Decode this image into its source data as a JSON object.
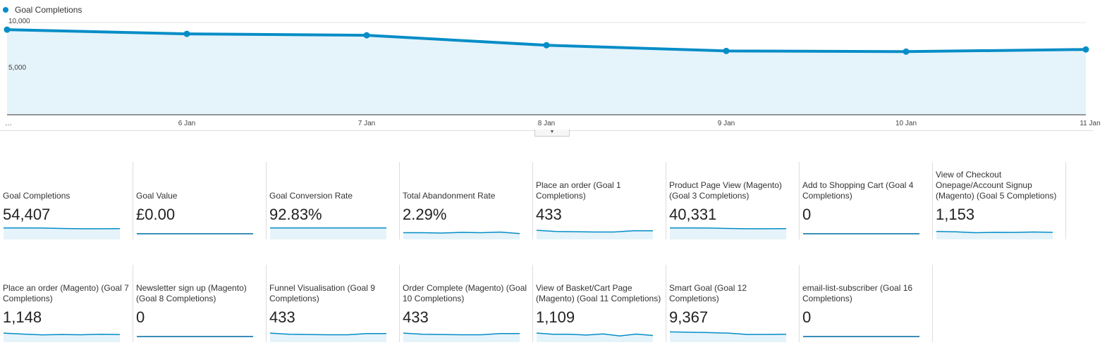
{
  "legend": {
    "label": "Goal Completions",
    "color": "#058dc7"
  },
  "chart_data": {
    "type": "area",
    "title": "Goal Completions",
    "x": [
      "…",
      "6 Jan",
      "7 Jan",
      "8 Jan",
      "9 Jan",
      "10 Jan",
      "11 Jan"
    ],
    "series": [
      {
        "name": "Goal Completions",
        "values": [
          9230,
          8770,
          8620,
          7540,
          6920,
          6850,
          7080
        ]
      }
    ],
    "yticks": [
      "10,000",
      "5,000"
    ],
    "ylim": [
      0,
      10000
    ],
    "grid": true
  },
  "toggle_icon": "chevron-down-icon",
  "cards": [
    {
      "title": "Goal Completions",
      "value": "54,407",
      "trend": [
        9,
        9,
        8.9,
        8.5,
        8.3,
        8.3,
        8.4
      ]
    },
    {
      "title": "Goal Value",
      "value": "£0.00",
      "trend": [
        0,
        0,
        0,
        0,
        0,
        0,
        0
      ],
      "line_only": true
    },
    {
      "title": "Goal Conversion Rate",
      "value": "92.83%",
      "trend": [
        9,
        9,
        9,
        9,
        9,
        9,
        9
      ]
    },
    {
      "title": "Total Abandonment Rate",
      "value": "2.29%",
      "trend": [
        5,
        5,
        4.7,
        5.3,
        5,
        5.5,
        4.3
      ]
    },
    {
      "title": "Place an order (Goal 1 Completions)",
      "value": "433",
      "trend": [
        7,
        6,
        5.8,
        5.6,
        5.6,
        6.6,
        6.6
      ]
    },
    {
      "title": "Product Page View (Magento) (Goal 3 Completions)",
      "value": "40,331",
      "trend": [
        9,
        9,
        8.9,
        8.5,
        8.3,
        8.3,
        8.4
      ]
    },
    {
      "title": "Add to Shopping Cart (Goal 4 Completions)",
      "value": "0",
      "trend": [
        0,
        0,
        0,
        0,
        0,
        0,
        0
      ],
      "line_only": true
    },
    {
      "title": "View of Checkout Onepage/Account Signup (Magento) (Goal 5 Completions)",
      "value": "1,153",
      "trend": [
        6,
        5.7,
        5,
        5.3,
        5.2,
        5.6,
        5.3
      ]
    },
    {
      "title": "Place an order (Magento) (Goal 7 Completions)",
      "value": "1,148",
      "trend": [
        7,
        6.2,
        5.5,
        5.8,
        5.6,
        6,
        5.8
      ]
    },
    {
      "title": "Newsletter sign up (Magento) (Goal 8 Completions)",
      "value": "0",
      "trend": [
        0,
        0,
        0,
        0,
        0,
        0,
        0
      ],
      "line_only": true
    },
    {
      "title": "Funnel Visualisation (Goal 9 Completions)",
      "value": "433",
      "trend": [
        7,
        6,
        5.8,
        5.6,
        5.6,
        6.6,
        6.6
      ]
    },
    {
      "title": "Order Complete (Magento) (Goal 10 Completions)",
      "value": "433",
      "trend": [
        7,
        6,
        5.8,
        5.6,
        5.6,
        6.6,
        6.6
      ]
    },
    {
      "title": "View of Basket/Cart Page (Magento) (Goal 11 Completions)",
      "value": "1,109",
      "trend": [
        7,
        6,
        6,
        5.4,
        6.3,
        4.6,
        6.2,
        5
      ]
    },
    {
      "title": "Smart Goal (Goal 12 Completions)",
      "value": "9,367",
      "trend": [
        8,
        7.7,
        7.4,
        7,
        5.9,
        5.9,
        6
      ]
    },
    {
      "title": "email-list-subscriber (Goal 16 Completions)",
      "value": "0",
      "trend": [
        0,
        0,
        0,
        0,
        0,
        0,
        0
      ],
      "line_only": true
    }
  ]
}
